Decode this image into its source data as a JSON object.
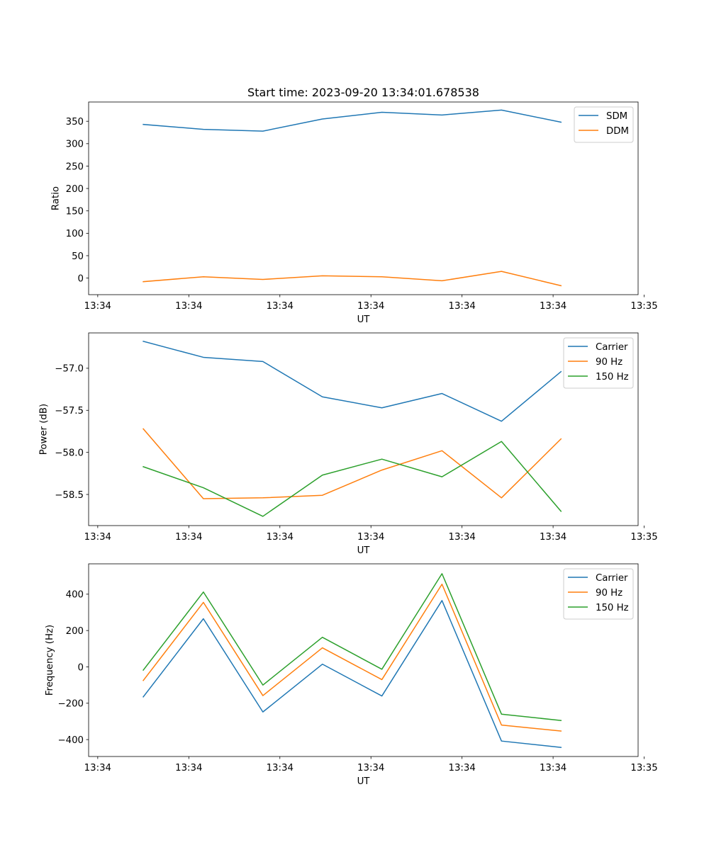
{
  "title": "Start time: 2023-09-20 13:34:01.678538",
  "colors": {
    "blue": "#1f77b4",
    "orange": "#ff7f0e",
    "green": "#2ca02c"
  },
  "chart_data": [
    {
      "type": "line",
      "title": "Start time: 2023-09-20 13:34:01.678538",
      "xlabel": "UT",
      "ylabel": "Ratio",
      "xlim": [
        -0.15,
        8.9
      ],
      "ylim": [
        -37,
        393
      ],
      "xticks": [
        0,
        1.5,
        3,
        4.5,
        6,
        7.5,
        9
      ],
      "xtick_labels": [
        "13:34",
        "13:34",
        "13:34",
        "13:34",
        "13:34",
        "13:34",
        "13:35"
      ],
      "yticks": [
        0,
        50,
        100,
        150,
        200,
        250,
        300,
        350
      ],
      "ytick_labels": [
        "0",
        "50",
        "100",
        "150",
        "200",
        "250",
        "300",
        "350"
      ],
      "legend": "top-right",
      "x": [
        0.75,
        1.74,
        2.72,
        3.7,
        4.68,
        5.67,
        6.65,
        7.63
      ],
      "series": [
        {
          "name": "SDM",
          "color": "#1f77b4",
          "values": [
            343,
            332,
            328,
            355,
            370,
            364,
            375,
            348
          ]
        },
        {
          "name": "DDM",
          "color": "#ff7f0e",
          "values": [
            -8,
            3,
            -3,
            5,
            3,
            -6,
            15,
            -17
          ]
        }
      ]
    },
    {
      "type": "line",
      "title": "",
      "xlabel": "UT",
      "ylabel": "Power (dB)",
      "xlim": [
        -0.15,
        8.9
      ],
      "ylim": [
        -58.87,
        -56.58
      ],
      "xticks": [
        0,
        1.5,
        3,
        4.5,
        6,
        7.5,
        9
      ],
      "xtick_labels": [
        "13:34",
        "13:34",
        "13:34",
        "13:34",
        "13:34",
        "13:34",
        "13:35"
      ],
      "yticks": [
        -58.5,
        -58.0,
        -57.5,
        -57.0
      ],
      "ytick_labels": [
        "−58.5",
        "−58.0",
        "−57.5",
        "−57.0"
      ],
      "legend": "top-right",
      "x": [
        0.75,
        1.74,
        2.72,
        3.7,
        4.68,
        5.67,
        6.65,
        7.63
      ],
      "series": [
        {
          "name": "Carrier",
          "color": "#1f77b4",
          "values": [
            -56.68,
            -56.87,
            -56.92,
            -57.34,
            -57.47,
            -57.3,
            -57.63,
            -57.04
          ]
        },
        {
          "name": "90 Hz",
          "color": "#ff7f0e",
          "values": [
            -57.72,
            -58.55,
            -58.54,
            -58.51,
            -58.21,
            -57.98,
            -58.54,
            -57.84
          ]
        },
        {
          "name": "150 Hz",
          "color": "#2ca02c",
          "values": [
            -58.17,
            -58.42,
            -58.76,
            -58.27,
            -58.08,
            -58.29,
            -57.87,
            -58.7
          ]
        }
      ]
    },
    {
      "type": "line",
      "title": "",
      "xlabel": "UT",
      "ylabel": "Frequency (Hz)",
      "xlim": [
        -0.15,
        8.9
      ],
      "ylim": [
        -493,
        567
      ],
      "xticks": [
        0,
        1.5,
        3,
        4.5,
        6,
        7.5,
        9
      ],
      "xtick_labels": [
        "13:34",
        "13:34",
        "13:34",
        "13:34",
        "13:34",
        "13:34",
        "13:35"
      ],
      "yticks": [
        -400,
        -200,
        0,
        200,
        400
      ],
      "ytick_labels": [
        "−400",
        "−200",
        "0",
        "200",
        "400"
      ],
      "legend": "top-right",
      "x": [
        0.75,
        1.74,
        2.72,
        3.7,
        4.68,
        5.67,
        6.65,
        7.63
      ],
      "series": [
        {
          "name": "Carrier",
          "color": "#1f77b4",
          "values": [
            -165,
            265,
            -248,
            15,
            -160,
            365,
            -408,
            -443
          ]
        },
        {
          "name": "90 Hz",
          "color": "#ff7f0e",
          "values": [
            -75,
            355,
            -158,
            105,
            -70,
            455,
            -320,
            -353
          ]
        },
        {
          "name": "150 Hz",
          "color": "#2ca02c",
          "values": [
            -18,
            412,
            -100,
            163,
            -13,
            513,
            -260,
            -295
          ]
        }
      ]
    }
  ]
}
